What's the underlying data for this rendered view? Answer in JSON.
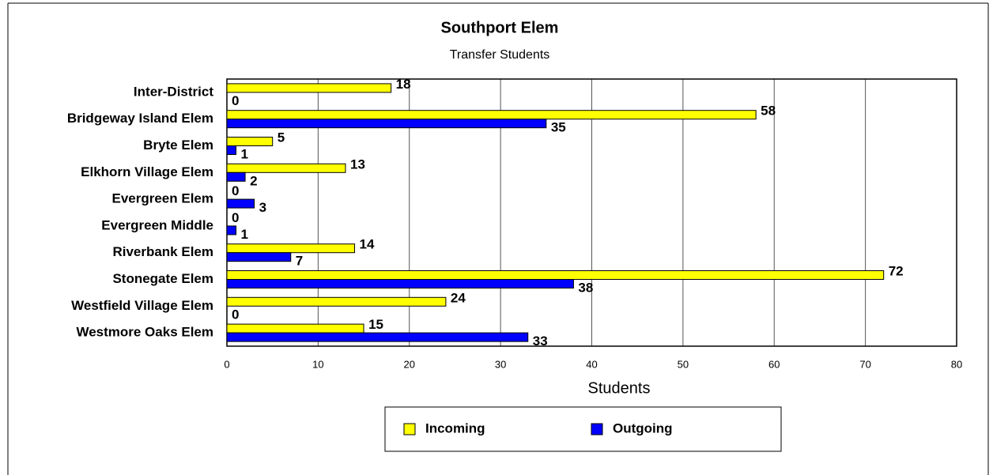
{
  "chart_data": {
    "type": "bar",
    "orientation": "horizontal",
    "title": "Southport Elem",
    "subtitle": "Transfer Students",
    "x_label": "Students",
    "categories": [
      "Inter-District",
      "Bridgeway Island Elem",
      "Bryte Elem",
      "Elkhorn Village Elem",
      "Evergreen Elem",
      "Evergreen Middle",
      "Riverbank Elem",
      "Stonegate Elem",
      "Westfield Village Elem",
      "Westmore Oaks Elem"
    ],
    "series": [
      {
        "name": "Incoming",
        "color": "#ffff00",
        "values": [
          18,
          58,
          5,
          13,
          0,
          0,
          14,
          72,
          24,
          15
        ]
      },
      {
        "name": "Outgoing",
        "color": "#0000ff",
        "values": [
          0,
          35,
          1,
          2,
          3,
          1,
          7,
          38,
          0,
          33
        ]
      }
    ],
    "xlim": [
      0,
      80
    ],
    "xticks": [
      0,
      10,
      20,
      30,
      40,
      50,
      60,
      70,
      80
    ],
    "grid": true,
    "legend": "bottom"
  }
}
